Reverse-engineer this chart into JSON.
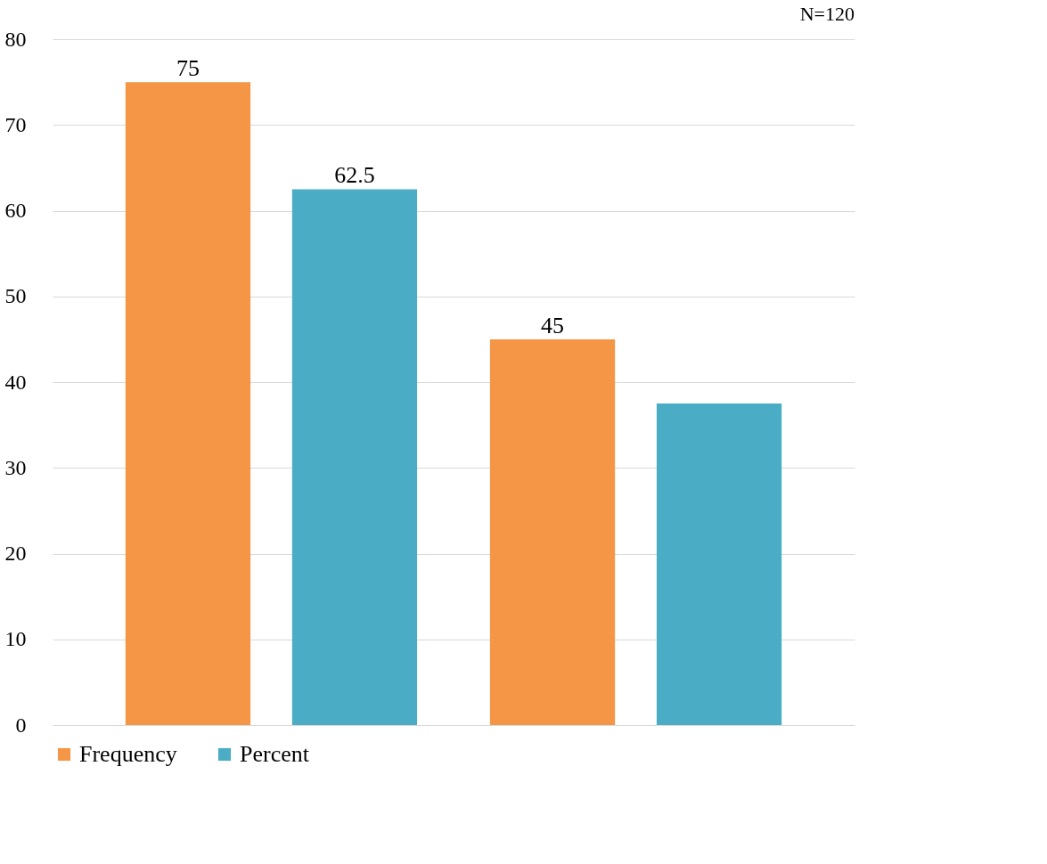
{
  "chart_data": {
    "type": "bar",
    "categories": [
      null,
      null
    ],
    "series": [
      {
        "name": "Frequency",
        "color": "#f59646",
        "values": [
          75,
          45
        ],
        "value_labels": [
          "75",
          "45"
        ]
      },
      {
        "name": "Percent",
        "color": "#4bacc6",
        "values": [
          62.5,
          37.5
        ],
        "value_labels": [
          "62.5",
          null
        ]
      }
    ],
    "ylim": [
      0,
      80
    ],
    "yticks": [
      0,
      10,
      20,
      30,
      40,
      50,
      60,
      70,
      80
    ],
    "grid": "y",
    "legend": "bottom",
    "annotations": [
      "N=120"
    ]
  }
}
